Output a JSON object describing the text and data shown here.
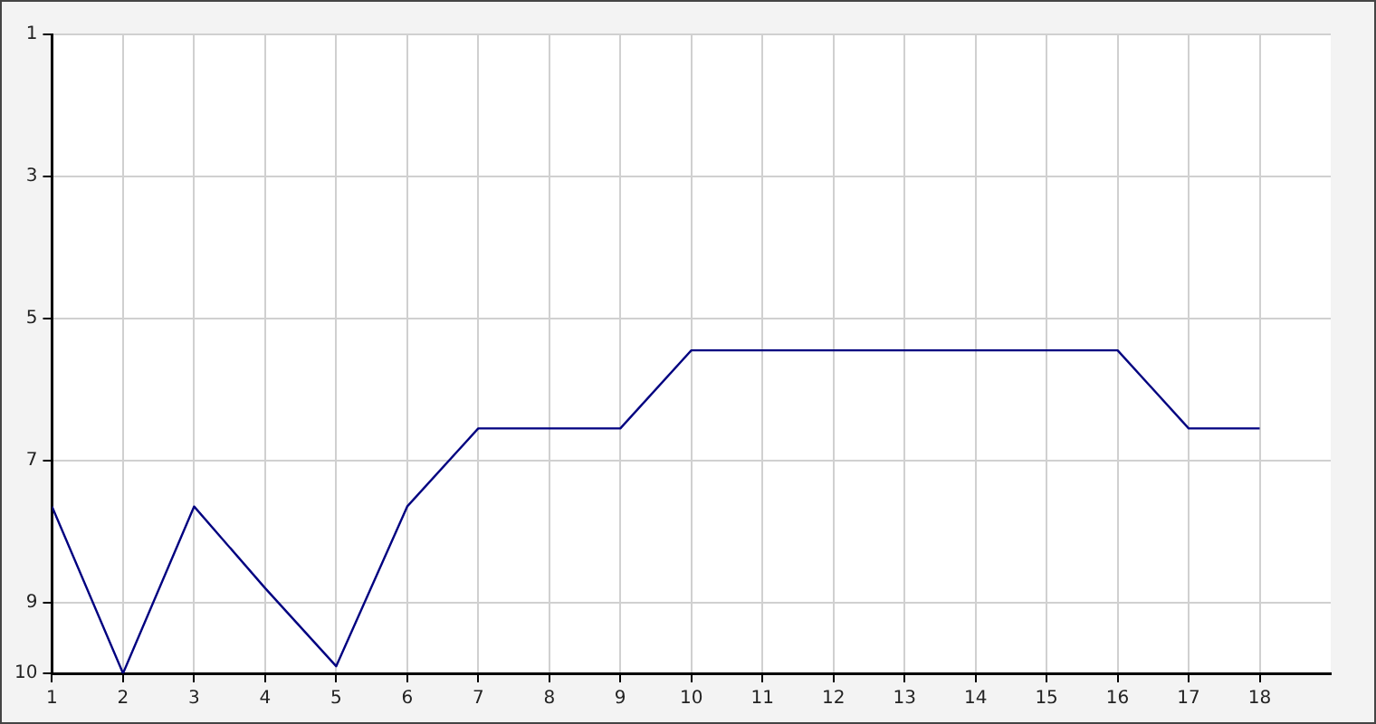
{
  "chart_data": {
    "type": "line",
    "x": [
      1,
      2,
      3,
      4,
      5,
      6,
      7,
      8,
      9,
      10,
      11,
      12,
      13,
      14,
      15,
      16,
      17,
      18
    ],
    "series": [
      {
        "color": "#000080",
        "values": [
          7.65,
          10,
          7.65,
          8.8,
          9.9,
          7.65,
          6.55,
          6.55,
          6.55,
          5.45,
          5.45,
          5.45,
          5.45,
          5.45,
          5.45,
          5.45,
          6.55,
          6.55
        ]
      }
    ],
    "xlim": [
      1,
      19
    ],
    "xticks": [
      1,
      2,
      3,
      4,
      5,
      6,
      7,
      8,
      9,
      10,
      11,
      12,
      13,
      14,
      15,
      16,
      17,
      18
    ],
    "ylim": [
      10,
      1
    ],
    "yticks": [
      1,
      3,
      5,
      7,
      9,
      10
    ],
    "grid": true,
    "legend": false,
    "marker": "none",
    "line_style": "solid"
  }
}
